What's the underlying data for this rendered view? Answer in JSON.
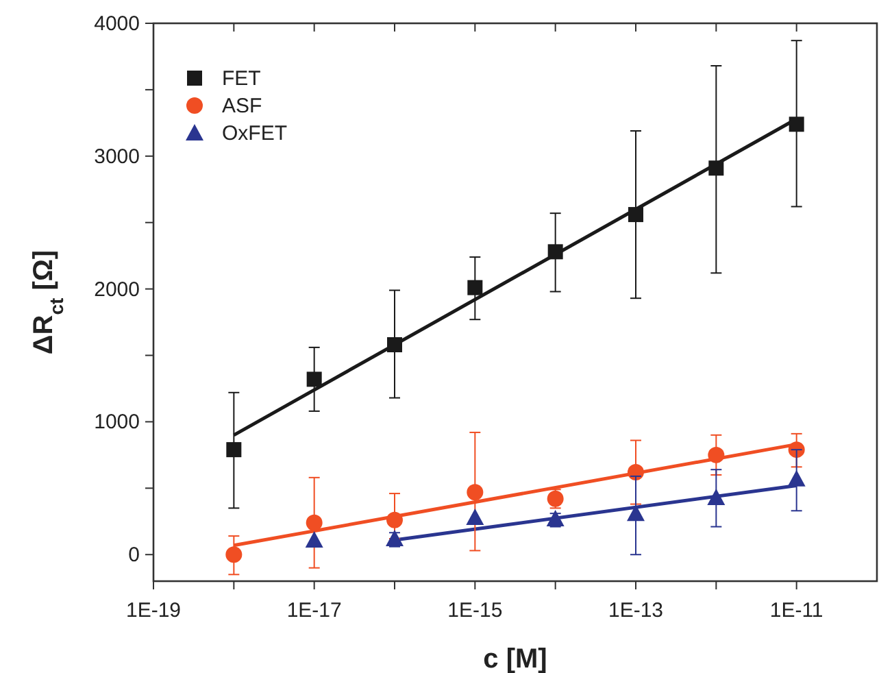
{
  "chart_data": {
    "type": "scatter",
    "xlabel": "c [M]",
    "ylabel": "ΔR$_{ct}$ [Ω]",
    "log": "x",
    "xlim": [
      1e-19,
      1e-10
    ],
    "xticks": [
      {
        "value": 1e-19,
        "label": "1E-19"
      },
      {
        "value": 1e-18,
        "label": null
      },
      {
        "value": 1e-17,
        "label": "1E-17"
      },
      {
        "value": 1e-16,
        "label": null
      },
      {
        "value": 1e-15,
        "label": "1E-15"
      },
      {
        "value": 1e-14,
        "label": null
      },
      {
        "value": 1e-13,
        "label": "1E-13"
      },
      {
        "value": 1e-12,
        "label": null
      },
      {
        "value": 1e-11,
        "label": "1E-11"
      }
    ],
    "ylim": [
      -200,
      4000
    ],
    "yticks": [
      0,
      {
        "value": 500,
        "label": null
      },
      1000,
      {
        "value": 1500,
        "label": null
      },
      2000,
      {
        "value": 2500,
        "label": null
      },
      3000,
      {
        "value": 3500,
        "label": null
      },
      4000
    ],
    "grid": false,
    "legend": "top left",
    "series": [
      {
        "name": "FET",
        "color": "#1a1a1a",
        "marker": "square",
        "x": [
          1e-18,
          1e-17,
          1e-16,
          1e-15,
          1e-14,
          1e-13,
          1e-12,
          1e-11
        ],
        "values": [
          790,
          1320,
          1580,
          2010,
          2280,
          2560,
          2910,
          3240
        ],
        "errors": [
          [
            350,
            1220
          ],
          [
            1080,
            1560
          ],
          [
            1180,
            1990
          ],
          [
            1770,
            2240
          ],
          [
            1980,
            2570
          ],
          [
            1930,
            3190
          ],
          [
            2120,
            3680
          ],
          [
            2620,
            3870
          ]
        ]
      },
      {
        "name": "ASF",
        "color": "#f04e23",
        "marker": "circle",
        "x": [
          1e-18,
          1e-17,
          1e-16,
          1e-15,
          1e-14,
          1e-13,
          1e-12,
          1e-11
        ],
        "values": [
          0,
          240,
          260,
          470,
          420,
          620,
          750,
          790
        ],
        "errors": [
          [
            -150,
            140
          ],
          [
            -100,
            580
          ],
          [
            120,
            460
          ],
          [
            30,
            920
          ],
          [
            350,
            490
          ],
          [
            380,
            860
          ],
          [
            600,
            900
          ],
          [
            660,
            910
          ]
        ]
      },
      {
        "name": "OxFET",
        "color": "#2a3590",
        "marker": "triangle",
        "x": [
          1e-17,
          1e-16,
          1e-15,
          1e-14,
          1e-13,
          1e-12,
          1e-11
        ],
        "values": [
          110,
          120,
          280,
          270,
          310,
          430,
          570
        ],
        "errors": [
          null,
          [
            60,
            165
          ],
          null,
          [
            210,
            310
          ],
          [
            0,
            590
          ],
          [
            210,
            640
          ],
          [
            330,
            790
          ]
        ]
      },
      {
        "type": "line",
        "color": "#1a1a1a",
        "x": [
          1e-18,
          1e-11
        ],
        "values": [
          900,
          3280
        ]
      },
      {
        "type": "line",
        "color": "#f04e23",
        "x": [
          1e-18,
          1e-11
        ],
        "values": [
          70,
          830
        ]
      },
      {
        "type": "line",
        "color": "#2a3590",
        "x": [
          1e-16,
          1e-11
        ],
        "values": [
          110,
          520
        ]
      }
    ]
  }
}
